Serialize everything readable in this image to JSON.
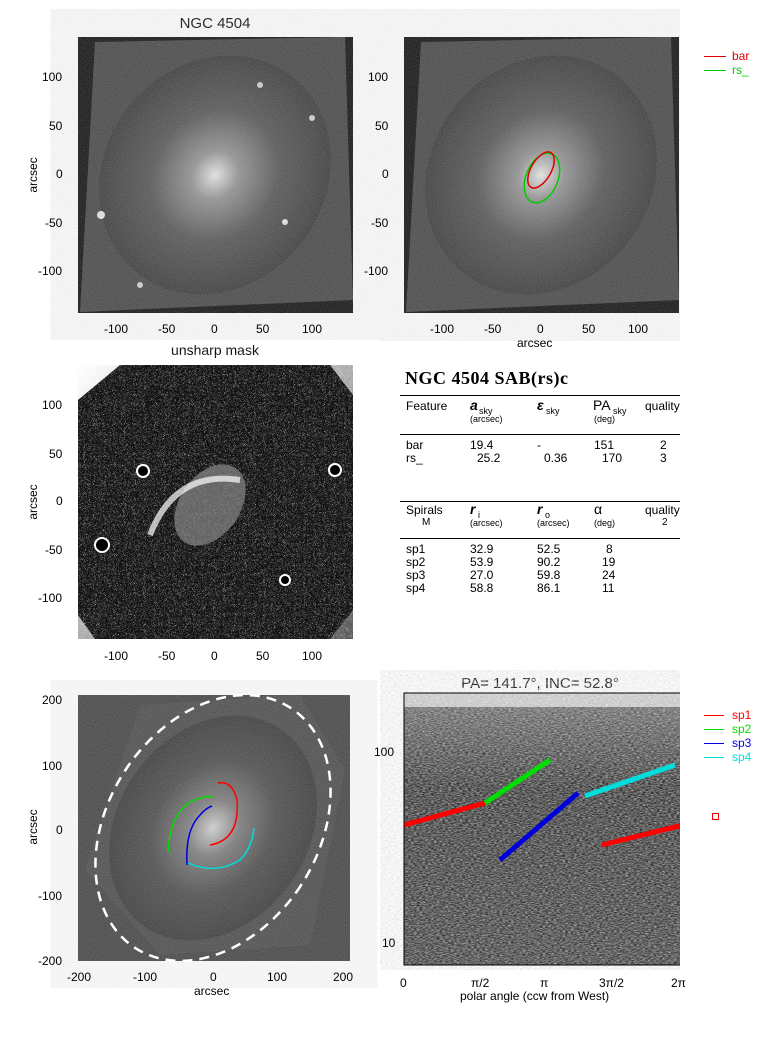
{
  "panel1": {
    "title": "NGC 4504",
    "ylabel": "arcsec",
    "xticks": [
      "-100",
      "-50",
      "0",
      "50",
      "100"
    ],
    "yticks": [
      "100",
      "50",
      "0",
      "-50",
      "-100"
    ]
  },
  "panel2": {
    "xlabel": "arcsec",
    "xticks": [
      "-100",
      "-50",
      "0",
      "50",
      "100"
    ],
    "yticks": [
      "100",
      "50",
      "0",
      "-50",
      "-100"
    ],
    "legend": [
      {
        "label": "bar",
        "color": "#dd0000"
      },
      {
        "label": "rs_",
        "color": "#00cc00"
      }
    ]
  },
  "panel3": {
    "title": "unsharp mask",
    "ylabel": "arcsec",
    "xticks": [
      "-100",
      "-50",
      "0",
      "50",
      "100"
    ],
    "yticks": [
      "100",
      "50",
      "0",
      "-50",
      "-100"
    ]
  },
  "table": {
    "title": "NGC 4504  SAB(rs)c",
    "features_header": {
      "c1": "Feature",
      "c2": "a",
      "c2_sub": "sky",
      "c2_unit": "(arcsec)",
      "c3": "ε",
      "c3_sub": "sky",
      "c4": "PA",
      "c4_sub": "sky",
      "c4_unit": "(deg)",
      "c5": "quality"
    },
    "features": [
      {
        "name": "bar",
        "a": "19.4",
        "e": "-",
        "pa": "151",
        "q": "2"
      },
      {
        "name": "rs_",
        "a": "25.2",
        "e": "0.36",
        "pa": "170",
        "q": "3"
      }
    ],
    "spirals_header": {
      "c1": "Spirals",
      "c1_sub": "M",
      "c2": "r",
      "c2_sub": "i",
      "c2_unit": "(arcsec)",
      "c3": "r",
      "c3_sub": "o",
      "c3_unit": "(arcsec)",
      "c4": "α",
      "c4_unit": "(deg)",
      "c5": "quality",
      "c5_sub": "2"
    },
    "spirals": [
      {
        "name": "sp1",
        "ri": "32.9",
        "ro": "52.5",
        "alpha": "8"
      },
      {
        "name": "sp2",
        "ri": "53.9",
        "ro": "90.2",
        "alpha": "19"
      },
      {
        "name": "sp3",
        "ri": "27.0",
        "ro": "59.8",
        "alpha": "24"
      },
      {
        "name": "sp4",
        "ri": "58.8",
        "ro": "86.1",
        "alpha": "11"
      }
    ]
  },
  "panel5": {
    "xlabel": "arcsec",
    "ylabel": "arcsec",
    "xticks": [
      "-200",
      "-100",
      "0",
      "100",
      "200"
    ],
    "yticks": [
      "200",
      "100",
      "0",
      "-100",
      "-200"
    ]
  },
  "panel6": {
    "title": "PA= 141.7°, INC=  52.8°",
    "xlabel": "polar angle (ccw from West)",
    "xticks": [
      "0",
      "π/2",
      "π",
      "3π/2",
      "2π"
    ],
    "yticks": [
      "100",
      "10"
    ],
    "legend": [
      {
        "label": "sp1",
        "color": "#ff0000"
      },
      {
        "label": "sp2",
        "color": "#00dd00"
      },
      {
        "label": "sp3",
        "color": "#0000dd"
      },
      {
        "label": "sp4",
        "color": "#00dddd"
      }
    ]
  },
  "colors": {
    "bar": "#dd0000",
    "rs": "#00cc00",
    "sp1": "#ff0000",
    "sp2": "#00dd00",
    "sp3": "#0000dd",
    "sp4": "#00dddd"
  }
}
